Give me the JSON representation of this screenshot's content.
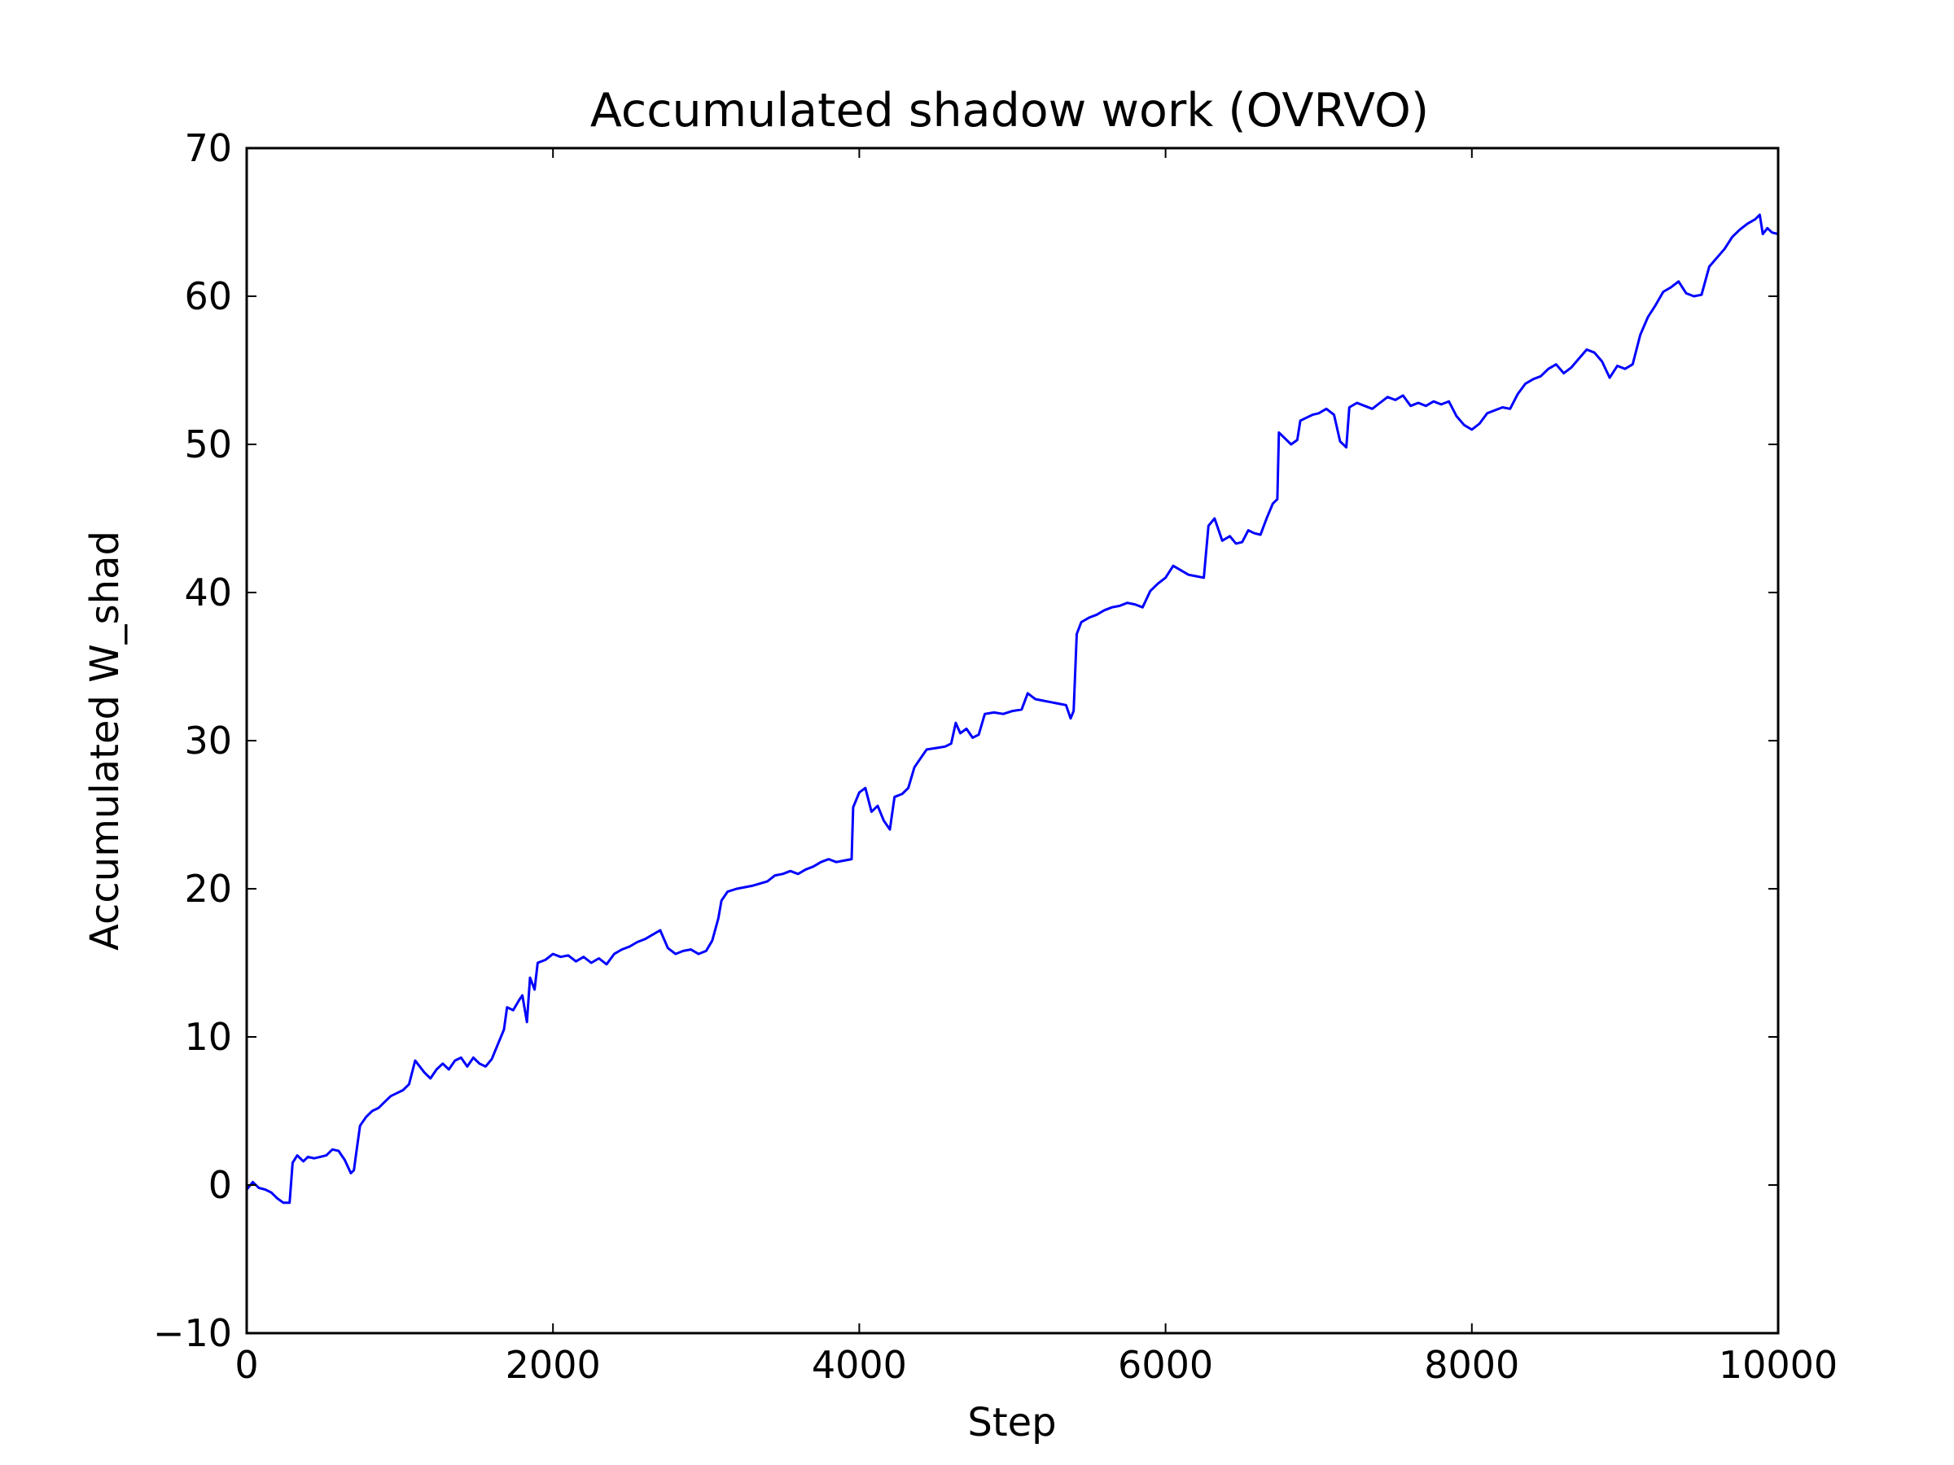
{
  "colors": {
    "background": "#ffffff",
    "axes": "#000000",
    "series": "#0000ff"
  },
  "chart_data": {
    "type": "line",
    "title": "Accumulated shadow work (OVRVO)",
    "xlabel": "Step",
    "ylabel": "Accumulated W_shad",
    "xlim": [
      0,
      10000
    ],
    "ylim": [
      -10,
      70
    ],
    "xticks": [
      0,
      2000,
      4000,
      6000,
      8000,
      10000
    ],
    "xtick_labels": [
      "0",
      "2000",
      "4000",
      "6000",
      "8000",
      "10000"
    ],
    "yticks": [
      -10,
      0,
      10,
      20,
      30,
      40,
      50,
      60,
      70
    ],
    "ytick_labels": [
      "−10",
      "0",
      "10",
      "20",
      "30",
      "40",
      "50",
      "60",
      "70"
    ],
    "grid": false,
    "legend": "none",
    "series": [
      {
        "color": "#0000ff",
        "points": [
          [
            0,
            -0.3
          ],
          [
            40,
            0.2
          ],
          [
            80,
            -0.2
          ],
          [
            120,
            -0.3
          ],
          [
            160,
            -0.5
          ],
          [
            200,
            -0.9
          ],
          [
            240,
            -1.2
          ],
          [
            280,
            -1.2
          ],
          [
            300,
            1.5
          ],
          [
            330,
            2.0
          ],
          [
            370,
            1.6
          ],
          [
            400,
            1.9
          ],
          [
            440,
            1.8
          ],
          [
            480,
            1.9
          ],
          [
            520,
            2.0
          ],
          [
            560,
            2.4
          ],
          [
            600,
            2.3
          ],
          [
            640,
            1.7
          ],
          [
            680,
            0.8
          ],
          [
            700,
            1.0
          ],
          [
            720,
            2.5
          ],
          [
            740,
            4.0
          ],
          [
            780,
            4.6
          ],
          [
            820,
            5.0
          ],
          [
            860,
            5.2
          ],
          [
            900,
            5.6
          ],
          [
            940,
            6.0
          ],
          [
            980,
            6.2
          ],
          [
            1020,
            6.4
          ],
          [
            1060,
            6.8
          ],
          [
            1100,
            8.4
          ],
          [
            1130,
            8.0
          ],
          [
            1160,
            7.6
          ],
          [
            1200,
            7.2
          ],
          [
            1240,
            7.8
          ],
          [
            1280,
            8.2
          ],
          [
            1320,
            7.8
          ],
          [
            1360,
            8.4
          ],
          [
            1400,
            8.6
          ],
          [
            1440,
            8.0
          ],
          [
            1480,
            8.6
          ],
          [
            1520,
            8.2
          ],
          [
            1560,
            8.0
          ],
          [
            1600,
            8.5
          ],
          [
            1640,
            9.5
          ],
          [
            1680,
            10.5
          ],
          [
            1700,
            12.0
          ],
          [
            1740,
            11.8
          ],
          [
            1780,
            12.5
          ],
          [
            1800,
            12.8
          ],
          [
            1830,
            11.0
          ],
          [
            1850,
            14.0
          ],
          [
            1880,
            13.2
          ],
          [
            1900,
            15.0
          ],
          [
            1950,
            15.2
          ],
          [
            2000,
            15.6
          ],
          [
            2050,
            15.4
          ],
          [
            2100,
            15.5
          ],
          [
            2150,
            15.1
          ],
          [
            2200,
            15.4
          ],
          [
            2250,
            15.0
          ],
          [
            2300,
            15.3
          ],
          [
            2350,
            14.9
          ],
          [
            2400,
            15.6
          ],
          [
            2450,
            15.9
          ],
          [
            2500,
            16.1
          ],
          [
            2550,
            16.4
          ],
          [
            2600,
            16.6
          ],
          [
            2650,
            16.9
          ],
          [
            2700,
            17.2
          ],
          [
            2750,
            16.0
          ],
          [
            2800,
            15.6
          ],
          [
            2850,
            15.8
          ],
          [
            2900,
            15.9
          ],
          [
            2950,
            15.6
          ],
          [
            3000,
            15.8
          ],
          [
            3040,
            16.5
          ],
          [
            3080,
            18.0
          ],
          [
            3100,
            19.2
          ],
          [
            3140,
            19.8
          ],
          [
            3200,
            20.0
          ],
          [
            3300,
            20.2
          ],
          [
            3400,
            20.5
          ],
          [
            3450,
            20.9
          ],
          [
            3500,
            21.0
          ],
          [
            3550,
            21.2
          ],
          [
            3600,
            21.0
          ],
          [
            3650,
            21.3
          ],
          [
            3700,
            21.5
          ],
          [
            3750,
            21.8
          ],
          [
            3800,
            22.0
          ],
          [
            3850,
            21.8
          ],
          [
            3900,
            21.9
          ],
          [
            3950,
            22.0
          ],
          [
            3960,
            25.5
          ],
          [
            4000,
            26.5
          ],
          [
            4040,
            26.8
          ],
          [
            4080,
            25.2
          ],
          [
            4120,
            25.6
          ],
          [
            4160,
            24.6
          ],
          [
            4200,
            24.0
          ],
          [
            4230,
            26.2
          ],
          [
            4280,
            26.4
          ],
          [
            4320,
            26.8
          ],
          [
            4360,
            28.2
          ],
          [
            4400,
            28.8
          ],
          [
            4440,
            29.4
          ],
          [
            4500,
            29.5
          ],
          [
            4560,
            29.6
          ],
          [
            4600,
            29.8
          ],
          [
            4630,
            31.2
          ],
          [
            4660,
            30.5
          ],
          [
            4700,
            30.8
          ],
          [
            4740,
            30.2
          ],
          [
            4780,
            30.4
          ],
          [
            4820,
            31.8
          ],
          [
            4880,
            31.9
          ],
          [
            4940,
            31.8
          ],
          [
            5000,
            32.0
          ],
          [
            5060,
            32.1
          ],
          [
            5100,
            33.2
          ],
          [
            5150,
            32.8
          ],
          [
            5200,
            32.7
          ],
          [
            5250,
            32.6
          ],
          [
            5300,
            32.5
          ],
          [
            5350,
            32.4
          ],
          [
            5380,
            31.5
          ],
          [
            5400,
            32.0
          ],
          [
            5420,
            37.2
          ],
          [
            5450,
            38.0
          ],
          [
            5500,
            38.3
          ],
          [
            5550,
            38.5
          ],
          [
            5600,
            38.8
          ],
          [
            5650,
            39.0
          ],
          [
            5700,
            39.1
          ],
          [
            5750,
            39.3
          ],
          [
            5800,
            39.2
          ],
          [
            5850,
            39.0
          ],
          [
            5900,
            40.1
          ],
          [
            5950,
            40.6
          ],
          [
            6000,
            41.0
          ],
          [
            6050,
            41.8
          ],
          [
            6100,
            41.5
          ],
          [
            6150,
            41.2
          ],
          [
            6200,
            41.1
          ],
          [
            6250,
            41.0
          ],
          [
            6280,
            44.5
          ],
          [
            6320,
            45.0
          ],
          [
            6370,
            43.5
          ],
          [
            6420,
            43.8
          ],
          [
            6460,
            43.3
          ],
          [
            6500,
            43.4
          ],
          [
            6540,
            44.2
          ],
          [
            6580,
            44.0
          ],
          [
            6620,
            43.9
          ],
          [
            6660,
            45.0
          ],
          [
            6700,
            46.0
          ],
          [
            6730,
            46.3
          ],
          [
            6740,
            50.8
          ],
          [
            6780,
            50.4
          ],
          [
            6820,
            50.0
          ],
          [
            6860,
            50.3
          ],
          [
            6880,
            51.6
          ],
          [
            6920,
            51.8
          ],
          [
            6960,
            52.0
          ],
          [
            7000,
            52.1
          ],
          [
            7050,
            52.4
          ],
          [
            7100,
            52.0
          ],
          [
            7140,
            50.2
          ],
          [
            7180,
            49.8
          ],
          [
            7200,
            52.5
          ],
          [
            7250,
            52.8
          ],
          [
            7300,
            52.6
          ],
          [
            7350,
            52.4
          ],
          [
            7400,
            52.8
          ],
          [
            7450,
            53.2
          ],
          [
            7500,
            53.0
          ],
          [
            7550,
            53.3
          ],
          [
            7600,
            52.6
          ],
          [
            7650,
            52.8
          ],
          [
            7700,
            52.6
          ],
          [
            7750,
            52.9
          ],
          [
            7800,
            52.7
          ],
          [
            7850,
            52.9
          ],
          [
            7900,
            51.9
          ],
          [
            7950,
            51.3
          ],
          [
            8000,
            51.0
          ],
          [
            8050,
            51.4
          ],
          [
            8100,
            52.1
          ],
          [
            8150,
            52.3
          ],
          [
            8200,
            52.5
          ],
          [
            8250,
            52.4
          ],
          [
            8300,
            53.4
          ],
          [
            8350,
            54.1
          ],
          [
            8400,
            54.4
          ],
          [
            8450,
            54.6
          ],
          [
            8500,
            55.1
          ],
          [
            8550,
            55.4
          ],
          [
            8600,
            54.8
          ],
          [
            8650,
            55.2
          ],
          [
            8700,
            55.8
          ],
          [
            8750,
            56.4
          ],
          [
            8800,
            56.2
          ],
          [
            8850,
            55.6
          ],
          [
            8900,
            54.5
          ],
          [
            8950,
            55.3
          ],
          [
            9000,
            55.1
          ],
          [
            9050,
            55.4
          ],
          [
            9100,
            57.4
          ],
          [
            9150,
            58.6
          ],
          [
            9200,
            59.4
          ],
          [
            9250,
            60.3
          ],
          [
            9300,
            60.6
          ],
          [
            9350,
            61.0
          ],
          [
            9400,
            60.2
          ],
          [
            9450,
            60.0
          ],
          [
            9500,
            60.1
          ],
          [
            9550,
            62.0
          ],
          [
            9600,
            62.6
          ],
          [
            9650,
            63.2
          ],
          [
            9700,
            64.0
          ],
          [
            9750,
            64.5
          ],
          [
            9800,
            64.9
          ],
          [
            9850,
            65.2
          ],
          [
            9880,
            65.5
          ],
          [
            9900,
            64.2
          ],
          [
            9930,
            64.6
          ],
          [
            9960,
            64.3
          ],
          [
            10000,
            64.2
          ]
        ]
      }
    ]
  }
}
